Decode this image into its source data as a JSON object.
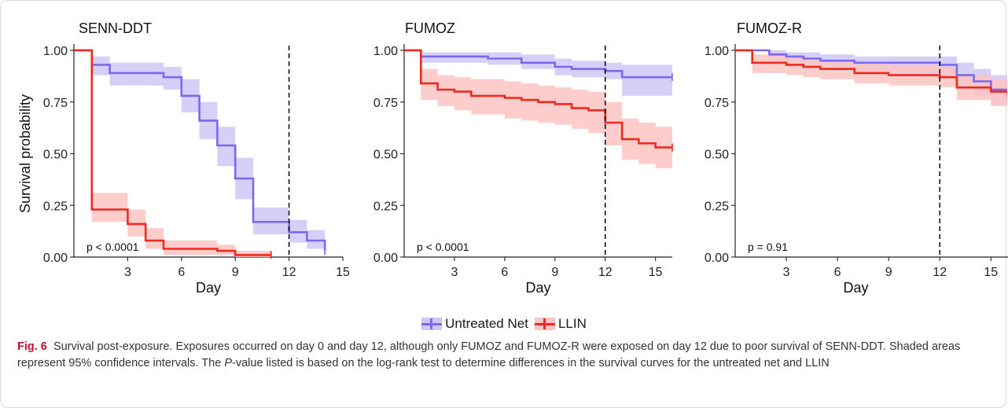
{
  "colors": {
    "untreated": "#7b68ee",
    "llin": "#ee2a1f",
    "untreated_ci": "#cfc8f7",
    "llin_ci": "#fbc4c2"
  },
  "legend": {
    "untreated_label": "Untreated Net",
    "llin_label": "LLIN"
  },
  "caption": {
    "fig_label": "Fig. 6",
    "text_pre": "Survival post-exposure. Exposures occurred on day 0 and day 12, although only FUMOZ and FUMOZ-R were exposed on day 12 due to poor survival of SENN-DDT. Shaded areas represent 95% confidence intervals. The ",
    "p_italic": "P",
    "text_post": "-value listed is based on the log-rank test to determine differences in the survival curves for the untreated net and LLIN"
  },
  "chart_data": [
    {
      "type": "line",
      "title": "SENN-DDT",
      "xlabel": "Day",
      "ylabel": "Survival probability",
      "xlim": [
        0,
        15
      ],
      "ylim": [
        0,
        1
      ],
      "xticks": [
        3,
        6,
        9,
        12,
        15
      ],
      "yticks": [
        0,
        0.25,
        0.5,
        0.75,
        1.0
      ],
      "ytick_labels": [
        "0.00",
        "0.25",
        "0.50",
        "0.75",
        "1.00"
      ],
      "vline": 12,
      "pvalue_label": "p < 0.0001",
      "series": [
        {
          "name": "Untreated Net",
          "steps": [
            [
              0,
              1.0
            ],
            [
              1,
              0.93
            ],
            [
              2,
              0.89
            ],
            [
              5,
              0.87
            ],
            [
              6,
              0.78
            ],
            [
              7,
              0.66
            ],
            [
              8,
              0.54
            ],
            [
              9,
              0.38
            ],
            [
              10,
              0.17
            ],
            [
              12,
              0.12
            ],
            [
              13,
              0.08
            ],
            [
              14,
              0.03
            ]
          ],
          "lower": [
            1.0,
            0.88,
            0.83,
            0.81,
            0.7,
            0.57,
            0.44,
            0.28,
            0.11,
            0.07,
            0.04,
            0.01
          ],
          "upper": [
            1.0,
            0.97,
            0.94,
            0.92,
            0.86,
            0.75,
            0.63,
            0.48,
            0.24,
            0.18,
            0.13,
            0.06
          ]
        },
        {
          "name": "LLIN",
          "steps": [
            [
              0,
              1.0
            ],
            [
              1,
              0.23
            ],
            [
              3,
              0.16
            ],
            [
              4,
              0.08
            ],
            [
              5,
              0.04
            ],
            [
              8,
              0.03
            ],
            [
              9,
              0.01
            ],
            [
              11,
              0.01
            ]
          ],
          "lower": [
            1.0,
            0.17,
            0.1,
            0.04,
            0.01,
            0.01,
            0.0,
            0.0
          ],
          "upper": [
            1.0,
            0.31,
            0.23,
            0.14,
            0.08,
            0.06,
            0.03,
            0.03
          ]
        }
      ]
    },
    {
      "type": "line",
      "title": "FUMOZ",
      "xlabel": "Day",
      "ylabel": "",
      "xlim": [
        0,
        16
      ],
      "ylim": [
        0,
        1
      ],
      "xticks": [
        3,
        6,
        9,
        12,
        15
      ],
      "yticks": [
        0,
        0.25,
        0.5,
        0.75,
        1.0
      ],
      "ytick_labels": [
        "0.00",
        "0.25",
        "0.50",
        "0.75",
        "1.00"
      ],
      "vline": 12,
      "pvalue_label": "p < 0.0001",
      "series": [
        {
          "name": "Untreated Net",
          "steps": [
            [
              0,
              1.0
            ],
            [
              1,
              0.97
            ],
            [
              5,
              0.96
            ],
            [
              7,
              0.94
            ],
            [
              9,
              0.92
            ],
            [
              10,
              0.91
            ],
            [
              12,
              0.9
            ],
            [
              13,
              0.87
            ],
            [
              16,
              0.87
            ]
          ],
          "lower": [
            1.0,
            0.94,
            0.93,
            0.91,
            0.88,
            0.87,
            0.86,
            0.78,
            0.78
          ],
          "upper": [
            1.0,
            0.99,
            0.99,
            0.98,
            0.96,
            0.95,
            0.94,
            0.93,
            0.93
          ]
        },
        {
          "name": "LLIN",
          "steps": [
            [
              0,
              1.0
            ],
            [
              1,
              0.84
            ],
            [
              2,
              0.81
            ],
            [
              3,
              0.8
            ],
            [
              4,
              0.78
            ],
            [
              6,
              0.77
            ],
            [
              7,
              0.76
            ],
            [
              8,
              0.75
            ],
            [
              9,
              0.74
            ],
            [
              10,
              0.72
            ],
            [
              11,
              0.71
            ],
            [
              12,
              0.65
            ],
            [
              13,
              0.57
            ],
            [
              14,
              0.55
            ],
            [
              15,
              0.53
            ],
            [
              16,
              0.53
            ]
          ],
          "lower": [
            1.0,
            0.76,
            0.73,
            0.71,
            0.69,
            0.67,
            0.66,
            0.65,
            0.64,
            0.62,
            0.6,
            0.54,
            0.47,
            0.45,
            0.43,
            0.43
          ],
          "upper": [
            1.0,
            0.91,
            0.88,
            0.87,
            0.86,
            0.85,
            0.84,
            0.83,
            0.82,
            0.81,
            0.8,
            0.75,
            0.67,
            0.65,
            0.63,
            0.63
          ]
        }
      ]
    },
    {
      "type": "line",
      "title": "FUMOZ-R",
      "xlabel": "Day",
      "ylabel": "",
      "xlim": [
        0,
        16
      ],
      "ylim": [
        0,
        1
      ],
      "xticks": [
        3,
        6,
        9,
        12,
        15
      ],
      "yticks": [
        0,
        0.25,
        0.5,
        0.75,
        1.0
      ],
      "ytick_labels": [
        "0.00",
        "0.25",
        "0.50",
        "0.75",
        "1.00"
      ],
      "vline": 12,
      "pvalue_label": "p = 0.91",
      "series": [
        {
          "name": "Untreated Net",
          "steps": [
            [
              0,
              1.0
            ],
            [
              2,
              0.98
            ],
            [
              3,
              0.97
            ],
            [
              4,
              0.96
            ],
            [
              5,
              0.95
            ],
            [
              7,
              0.94
            ],
            [
              12,
              0.93
            ],
            [
              13,
              0.88
            ],
            [
              14,
              0.85
            ],
            [
              15,
              0.81
            ],
            [
              16,
              0.76
            ]
          ],
          "lower": [
            1.0,
            0.95,
            0.93,
            0.92,
            0.91,
            0.89,
            0.88,
            0.82,
            0.78,
            0.74,
            0.69
          ],
          "upper": [
            1.0,
            1.0,
            0.99,
            0.99,
            0.98,
            0.97,
            0.97,
            0.94,
            0.91,
            0.88,
            0.84
          ]
        },
        {
          "name": "LLIN",
          "steps": [
            [
              0,
              1.0
            ],
            [
              1,
              0.94
            ],
            [
              3,
              0.93
            ],
            [
              4,
              0.92
            ],
            [
              5,
              0.91
            ],
            [
              7,
              0.89
            ],
            [
              9,
              0.88
            ],
            [
              12,
              0.87
            ],
            [
              13,
              0.82
            ],
            [
              15,
              0.8
            ],
            [
              16,
              0.78
            ]
          ],
          "lower": [
            1.0,
            0.89,
            0.88,
            0.87,
            0.86,
            0.84,
            0.83,
            0.82,
            0.76,
            0.73,
            0.71
          ],
          "upper": [
            1.0,
            0.98,
            0.97,
            0.96,
            0.95,
            0.94,
            0.93,
            0.92,
            0.88,
            0.86,
            0.85
          ]
        }
      ]
    }
  ]
}
